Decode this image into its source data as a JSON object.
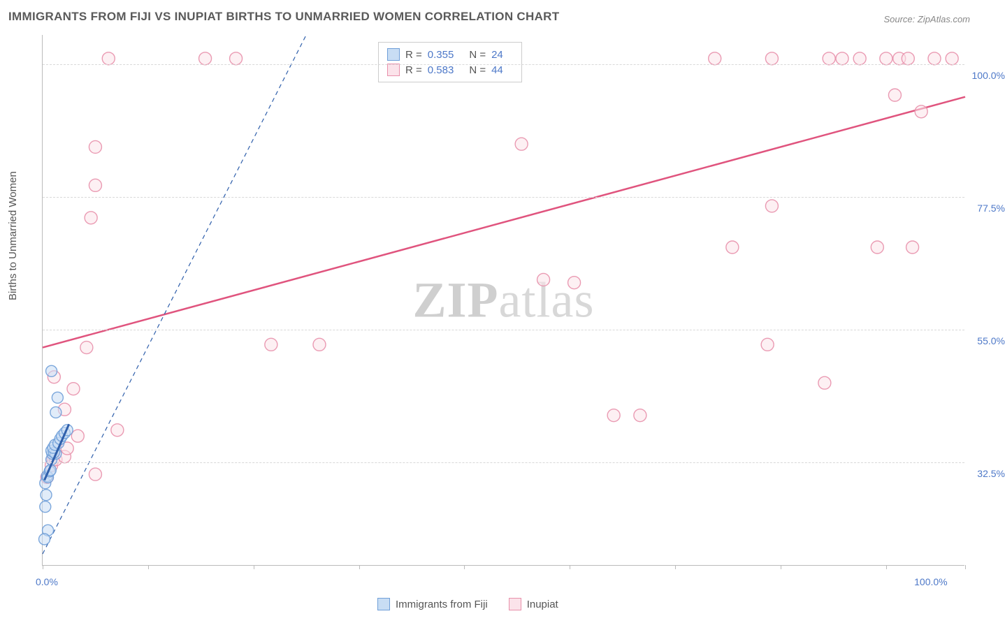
{
  "title": "IMMIGRANTS FROM FIJI VS INUPIAT BIRTHS TO UNMARRIED WOMEN CORRELATION CHART",
  "source": "Source: ZipAtlas.com",
  "ylabel": "Births to Unmarried Women",
  "watermark_bold": "ZIP",
  "watermark_light": "atlas",
  "chart": {
    "type": "scatter",
    "background_color": "#ffffff",
    "grid_color": "#d8d8d8",
    "axis_color": "#bbbbbb",
    "tick_label_color": "#4d78c8",
    "label_fontsize": 15,
    "tick_fontsize": 14,
    "title_fontsize": 17,
    "title_color": "#5a5a5a",
    "xlim": [
      0,
      105
    ],
    "ylim": [
      15,
      105
    ],
    "xticks": [
      0,
      12,
      24,
      36,
      48,
      60,
      72,
      84,
      96,
      105
    ],
    "xticks_labeled": [
      {
        "x": 0,
        "label": "0.0%"
      },
      {
        "x": 100,
        "label": "100.0%"
      }
    ],
    "yticks": [
      {
        "y": 32.5,
        "label": "32.5%"
      },
      {
        "y": 55.0,
        "label": "55.0%"
      },
      {
        "y": 77.5,
        "label": "77.5%"
      },
      {
        "y": 100.0,
        "label": "100.0%"
      }
    ],
    "series": [
      {
        "name": "Immigrants from Fiji",
        "marker_color_fill": "#c8ddf4",
        "marker_color_stroke": "#6f9fd8",
        "marker_color_stroke_opacity": 0.9,
        "marker_radius": 8,
        "line_color": "#2f5fab",
        "line_dash": "6,5",
        "line_width": 1.2,
        "trend_solid_color": "#2f5fab",
        "trend_solid_width": 3,
        "R": "0.355",
        "N": "24",
        "points": [
          [
            0.3,
            29.0
          ],
          [
            0.5,
            30.2
          ],
          [
            0.6,
            30.0
          ],
          [
            0.8,
            31.0
          ],
          [
            0.9,
            31.2
          ],
          [
            1.0,
            33.0
          ],
          [
            1.1,
            34.0
          ],
          [
            1.0,
            34.5
          ],
          [
            1.5,
            34.0
          ],
          [
            1.3,
            34.2
          ],
          [
            1.2,
            35.0
          ],
          [
            1.4,
            35.5
          ],
          [
            1.8,
            35.8
          ],
          [
            2.0,
            36.5
          ],
          [
            2.2,
            37.0
          ],
          [
            2.5,
            37.5
          ],
          [
            2.8,
            38.0
          ],
          [
            1.5,
            41.0
          ],
          [
            1.7,
            43.5
          ],
          [
            1.0,
            48.0
          ],
          [
            0.4,
            27.0
          ],
          [
            0.3,
            25.0
          ],
          [
            0.6,
            21.0
          ],
          [
            0.2,
            19.5
          ]
        ],
        "trend_dashed": {
          "x1": 0,
          "y1": 17,
          "x2": 30,
          "y2": 105
        },
        "trend_solid": {
          "x1": 0.2,
          "y1": 29.5,
          "x2": 3.0,
          "y2": 39.0
        }
      },
      {
        "name": "Inupiat",
        "marker_color_fill": "#fbe3ea",
        "marker_color_stroke": "#e890ab",
        "marker_color_stroke_opacity": 0.9,
        "marker_radius": 9,
        "line_color": "#e0547e",
        "line_width": 2.5,
        "R": "0.583",
        "N": "44",
        "points": [
          [
            0.5,
            30.0
          ],
          [
            1.0,
            32.0
          ],
          [
            1.2,
            33.0
          ],
          [
            1.5,
            33.0
          ],
          [
            2.5,
            33.5
          ],
          [
            6.0,
            30.5
          ],
          [
            2.8,
            34.9
          ],
          [
            4.0,
            37.0
          ],
          [
            8.5,
            38.0
          ],
          [
            2.5,
            41.5
          ],
          [
            3.5,
            45.0
          ],
          [
            1.3,
            47.0
          ],
          [
            5.0,
            52.0
          ],
          [
            26.0,
            52.5
          ],
          [
            31.5,
            52.5
          ],
          [
            65.0,
            40.5
          ],
          [
            68.0,
            40.5
          ],
          [
            89.0,
            46.0
          ],
          [
            82.5,
            52.5
          ],
          [
            57.0,
            63.5
          ],
          [
            60.5,
            63.0
          ],
          [
            78.5,
            69.0
          ],
          [
            83.0,
            76.0
          ],
          [
            95.0,
            69.0
          ],
          [
            99.0,
            69.0
          ],
          [
            100.0,
            92.0
          ],
          [
            97.0,
            94.8
          ],
          [
            7.5,
            101.0
          ],
          [
            18.5,
            101.0
          ],
          [
            22.0,
            101.0
          ],
          [
            54.5,
            86.5
          ],
          [
            76.5,
            101.0
          ],
          [
            83.0,
            101.0
          ],
          [
            89.5,
            101.0
          ],
          [
            91.0,
            101.0
          ],
          [
            93.0,
            101.0
          ],
          [
            96.0,
            101.0
          ],
          [
            97.5,
            101.0
          ],
          [
            98.5,
            101.0
          ],
          [
            101.5,
            101.0
          ],
          [
            103.5,
            101.0
          ],
          [
            5.5,
            74.0
          ],
          [
            6.0,
            79.5
          ],
          [
            6.0,
            86.0
          ]
        ],
        "trend": {
          "x1": 0,
          "y1": 52.0,
          "x2": 105,
          "y2": 94.5
        }
      }
    ]
  },
  "legend_top": {
    "r_label": "R =",
    "n_label": "N ="
  },
  "legend_bottom": [
    {
      "label": "Immigrants from Fiji",
      "fill": "#c8ddf4",
      "stroke": "#6f9fd8"
    },
    {
      "label": "Inupiat",
      "fill": "#fbe3ea",
      "stroke": "#e890ab"
    }
  ]
}
